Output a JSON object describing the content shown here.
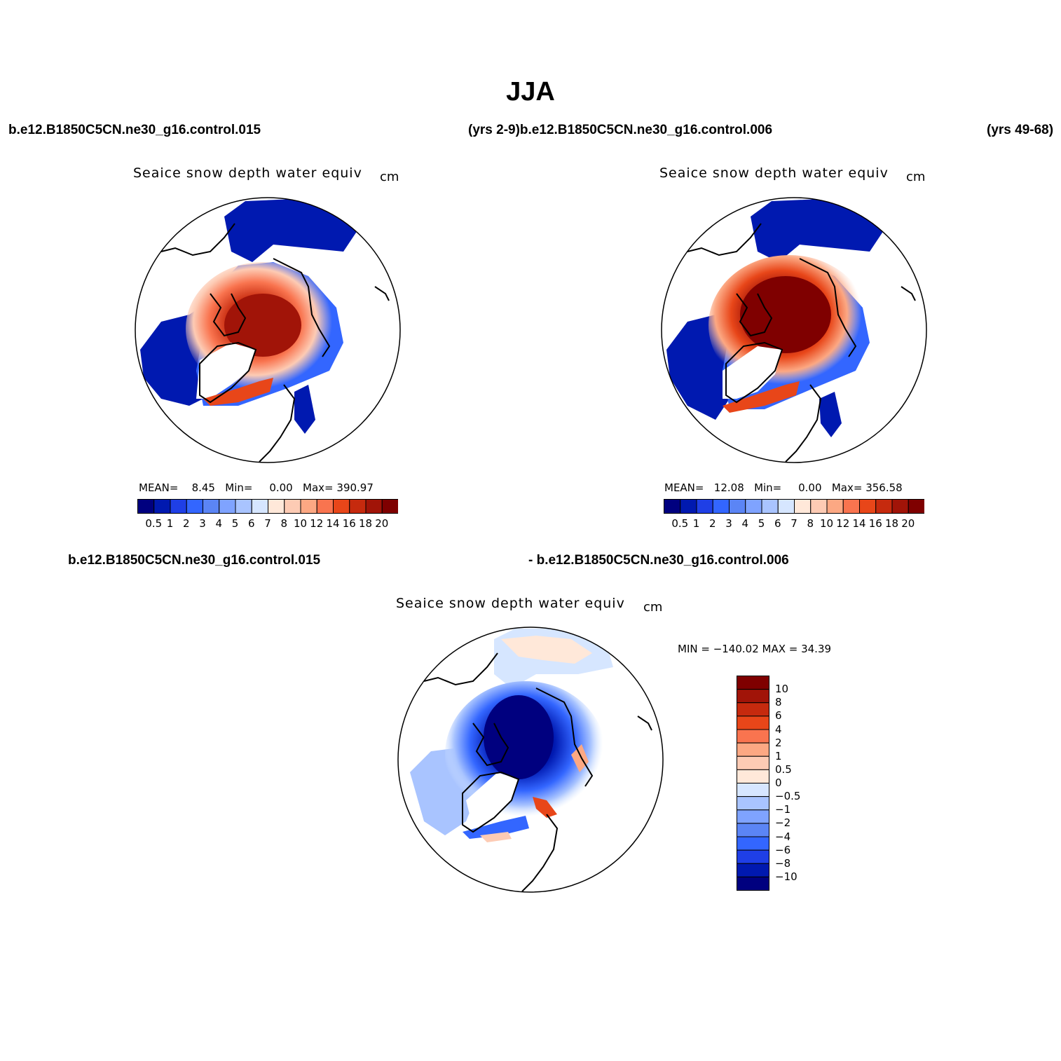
{
  "title": "JJA",
  "header": {
    "case_left": "b.e12.B1850C5CN.ne30_g16.control.015",
    "case_mid": "(yrs 2-9)b.e12.B1850C5CN.ne30_g16.control.006",
    "case_right": "(yrs 49-68)"
  },
  "diff_header": {
    "left": "b.e12.B1850C5CN.ne30_g16.control.015",
    "right": "- b.e12.B1850C5CN.ne30_g16.control.006"
  },
  "panels": [
    {
      "title": "Seaice snow depth water equiv",
      "units": "cm",
      "mean_label": "MEAN=",
      "mean": "8.45",
      "min_label": "Min=",
      "min": "0.00",
      "max_label": "Max=",
      "max": "390.97"
    },
    {
      "title": "Seaice snow depth water equiv",
      "units": "cm",
      "mean_label": "MEAN=",
      "mean": "12.08",
      "min_label": "Min=",
      "min": "0.00",
      "max_label": "Max=",
      "max": "356.58"
    }
  ],
  "diff_panel": {
    "title": "Seaice snow depth water equiv",
    "units": "cm",
    "minmax": "MIN = −140.02 MAX =   34.39"
  },
  "colorbar": {
    "labels": [
      "0.5",
      "1",
      "2",
      "3",
      "4",
      "5",
      "6",
      "7",
      "8",
      "10",
      "12",
      "14",
      "16",
      "18",
      "20"
    ],
    "colors": [
      "#00007f",
      "#0019b0",
      "#1f3fe6",
      "#3366ff",
      "#5b85f5",
      "#7fa3ff",
      "#a9c4ff",
      "#d6e6ff",
      "#ffe8d9",
      "#fdcbb4",
      "#fca883",
      "#f9744f",
      "#e84619",
      "#c62a0e",
      "#a11408",
      "#7f0000"
    ]
  },
  "diff_colorbar": {
    "labels": [
      "10",
      "8",
      "6",
      "4",
      "2",
      "1",
      "0.5",
      "0",
      "−0.5",
      "−1",
      "−2",
      "−4",
      "−6",
      "−8",
      "−10"
    ],
    "colors": [
      "#7f0000",
      "#a11408",
      "#c62a0e",
      "#e84619",
      "#f9744f",
      "#fca883",
      "#fdcbb4",
      "#ffe8d9",
      "#d6e6ff",
      "#a9c4ff",
      "#7fa3ff",
      "#5b85f5",
      "#3366ff",
      "#1f3fe6",
      "#0019b0",
      "#00007f"
    ]
  }
}
